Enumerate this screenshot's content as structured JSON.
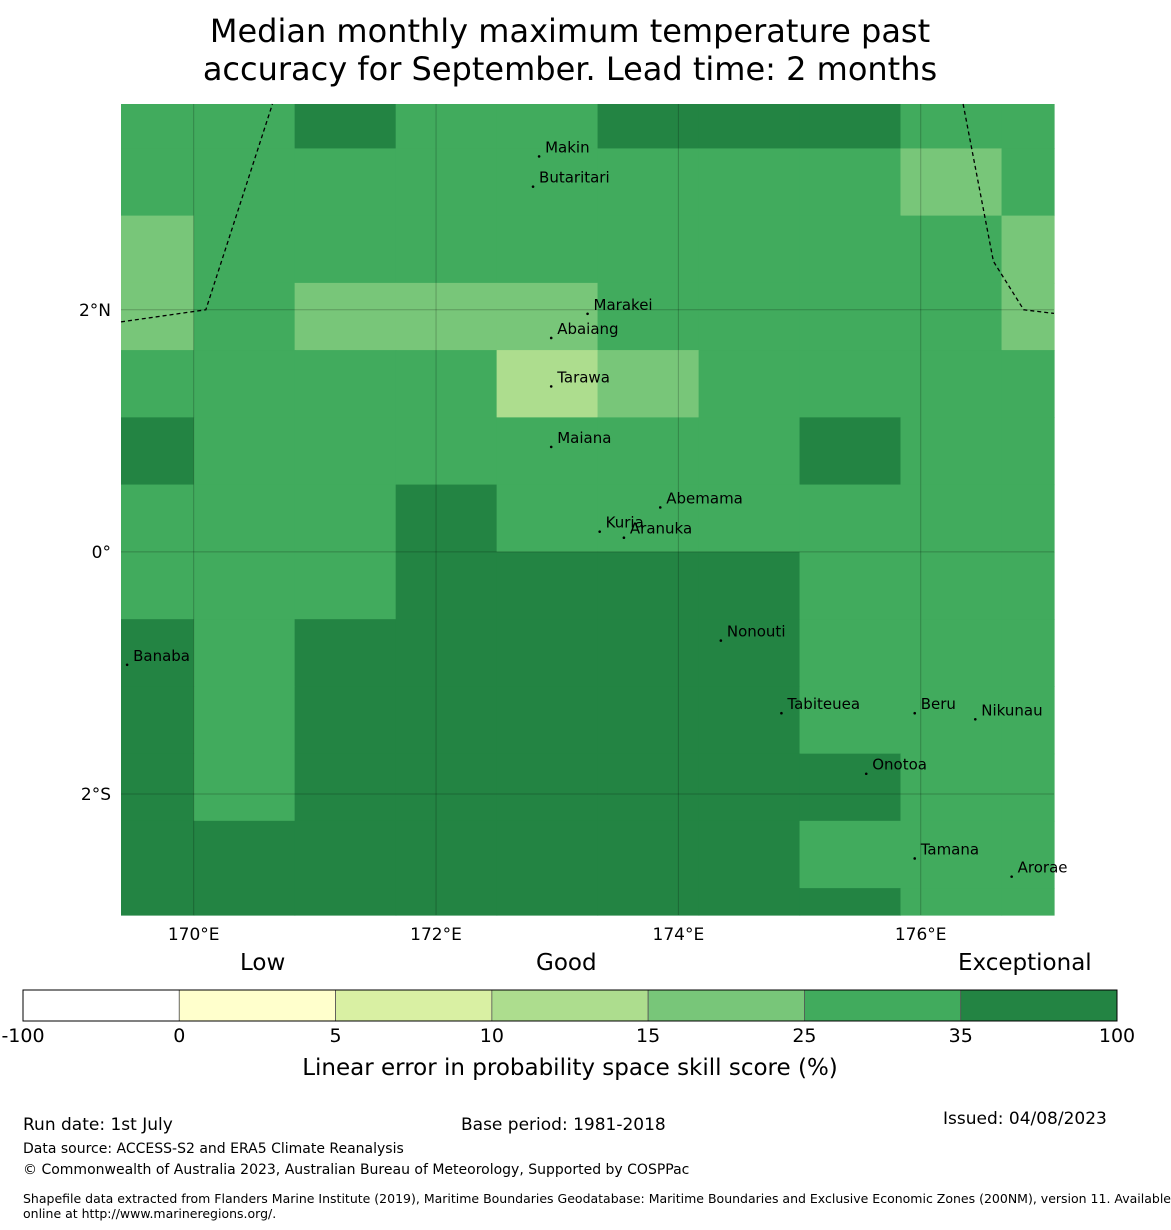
{
  "title_line1": "Median monthly maximum temperature past",
  "title_line2": "accuracy for September. Lead time: 2 months",
  "map": {
    "lon_range": [
      169.4,
      177.1
    ],
    "lat_range": [
      -3.0,
      3.7
    ],
    "lon_ticks": [
      {
        "value": 170,
        "label": "170°E"
      },
      {
        "value": 172,
        "label": "172°E"
      },
      {
        "value": 174,
        "label": "174°E"
      },
      {
        "value": 176,
        "label": "176°E"
      }
    ],
    "lat_ticks": [
      {
        "value": 2,
        "label": "2°N"
      },
      {
        "value": 0,
        "label": "0°"
      },
      {
        "value": -2,
        "label": "2°S"
      }
    ],
    "grid_columns_lon_edges": [
      169.4,
      170.0,
      170.833,
      171.667,
      172.5,
      173.333,
      174.167,
      175.0,
      175.833,
      176.667,
      177.1
    ],
    "grid_rows_lat_edges": [
      3.7,
      3.333,
      2.778,
      2.222,
      1.667,
      1.111,
      0.556,
      0.0,
      -0.556,
      -1.111,
      -1.667,
      -2.222,
      -2.778,
      -3.0
    ],
    "skill_category_grid": [
      [
        5,
        5,
        6,
        5,
        5,
        6,
        6,
        6,
        5,
        5
      ],
      [
        5,
        5,
        5,
        5,
        5,
        5,
        5,
        5,
        4,
        5
      ],
      [
        4,
        5,
        5,
        5,
        5,
        5,
        5,
        5,
        5,
        4
      ],
      [
        4,
        5,
        4,
        4,
        4,
        5,
        5,
        5,
        5,
        4
      ],
      [
        5,
        5,
        5,
        5,
        3,
        4,
        5,
        5,
        5,
        5
      ],
      [
        6,
        5,
        5,
        5,
        5,
        5,
        5,
        6,
        5,
        5
      ],
      [
        5,
        5,
        5,
        6,
        5,
        5,
        5,
        5,
        5,
        5
      ],
      [
        5,
        5,
        5,
        6,
        6,
        6,
        6,
        5,
        5,
        5
      ],
      [
        6,
        5,
        6,
        6,
        6,
        6,
        6,
        5,
        5,
        5
      ],
      [
        6,
        5,
        6,
        6,
        6,
        6,
        6,
        5,
        5,
        5
      ],
      [
        6,
        5,
        6,
        6,
        6,
        6,
        6,
        6,
        5,
        5
      ],
      [
        6,
        6,
        6,
        6,
        6,
        6,
        6,
        5,
        5,
        5
      ],
      [
        6,
        6,
        6,
        6,
        6,
        6,
        6,
        6,
        5,
        5
      ]
    ],
    "islands": [
      {
        "name": "Makin",
        "lon": 172.9,
        "lat": 3.3
      },
      {
        "name": "Butaritari",
        "lon": 172.85,
        "lat": 3.05
      },
      {
        "name": "Marakei",
        "lon": 173.3,
        "lat": 2.0
      },
      {
        "name": "Abaiang",
        "lon": 173.0,
        "lat": 1.8
      },
      {
        "name": "Tarawa",
        "lon": 173.0,
        "lat": 1.4
      },
      {
        "name": "Maiana",
        "lon": 173.0,
        "lat": 0.9
      },
      {
        "name": "Abemama",
        "lon": 173.9,
        "lat": 0.4
      },
      {
        "name": "Kuria",
        "lon": 173.4,
        "lat": 0.2
      },
      {
        "name": "Aranuka",
        "lon": 173.6,
        "lat": 0.15
      },
      {
        "name": "Nonouti",
        "lon": 174.4,
        "lat": -0.7
      },
      {
        "name": "Banaba",
        "lon": 169.5,
        "lat": -0.9
      },
      {
        "name": "Tabiteuea",
        "lon": 174.9,
        "lat": -1.3
      },
      {
        "name": "Beru",
        "lon": 176.0,
        "lat": -1.3
      },
      {
        "name": "Nikunau",
        "lon": 176.5,
        "lat": -1.35
      },
      {
        "name": "Onotoa",
        "lon": 175.6,
        "lat": -1.8
      },
      {
        "name": "Tamana",
        "lon": 176.0,
        "lat": -2.5
      },
      {
        "name": "Arorae",
        "lon": 176.8,
        "lat": -2.65
      }
    ],
    "eez_boundary_west": [
      [
        169.4,
        1.9
      ],
      [
        170.1,
        2.0
      ],
      [
        170.65,
        3.7
      ]
    ],
    "eez_boundary_east": [
      [
        176.35,
        3.7
      ],
      [
        176.6,
        2.4
      ],
      [
        176.85,
        2.0
      ],
      [
        177.1,
        1.97
      ]
    ]
  },
  "colorbar": {
    "category_words": [
      "Low",
      "Good",
      "Exceptional"
    ],
    "bins": [
      {
        "from": -100,
        "to": 0,
        "color": "#ffffff"
      },
      {
        "from": 0,
        "to": 5,
        "color": "#ffffcc"
      },
      {
        "from": 5,
        "to": 10,
        "color": "#d9f0a3"
      },
      {
        "from": 10,
        "to": 15,
        "color": "#addd8e"
      },
      {
        "from": 15,
        "to": 25,
        "color": "#78c679"
      },
      {
        "from": 25,
        "to": 35,
        "color": "#41ab5d"
      },
      {
        "from": 35,
        "to": 100,
        "color": "#238443"
      }
    ],
    "tick_labels": [
      "-100",
      "0",
      "5",
      "10",
      "15",
      "25",
      "35",
      "100"
    ],
    "axis_label": "Linear error in probability space skill score (%)"
  },
  "footer": {
    "run_date": "Run date: 1st July",
    "base_period": "Base period: 1981-2018",
    "issued": "Issued: 04/08/2023",
    "data_source": "Data source: ACCESS-S2 and ERA5 Climate Reanalysis",
    "copyright": "© Commonwealth of Australia 2023, Australian Bureau of Meteorology, Supported by COSPPac",
    "shapefile_line1": "Shapefile data extracted from Flanders Marine Institute (2019), Maritime Boundaries Geodatabase: Maritime Boundaries and Exclusive Economic Zones (200NM), version 11. Available",
    "shapefile_line2": "online at http://www.marineregions.org/."
  }
}
